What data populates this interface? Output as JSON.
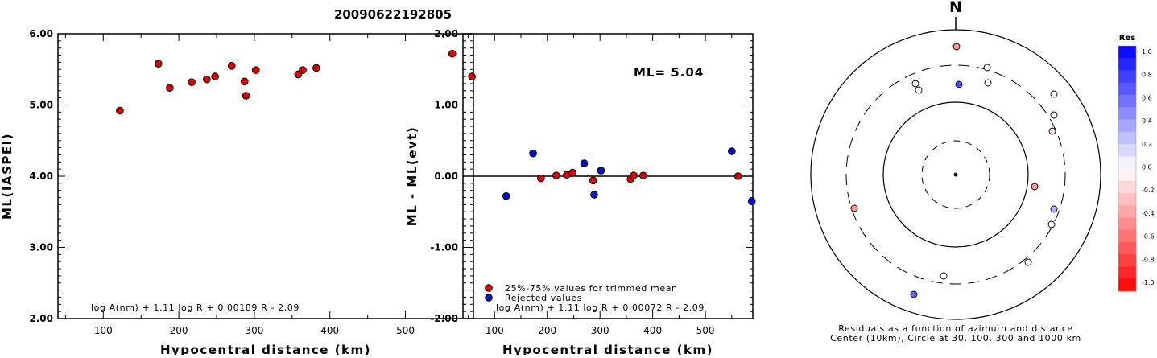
{
  "title": "20090622192805",
  "chart_data": [
    {
      "type": "scatter",
      "ylabel": "ML(IASPEI)",
      "xlabel": "Hypocentral distance (km)",
      "xlim": [
        40,
        590
      ],
      "ylim": [
        2.0,
        6.0
      ],
      "xticks": [
        100,
        200,
        300,
        400,
        500
      ],
      "yticks": [
        "2.00",
        "3.00",
        "4.00",
        "5.00",
        "6.00"
      ],
      "formula": "log A(nm) + 1.11 log R + 0.00189 R - 2.09",
      "points": [
        {
          "x": 122,
          "y": 4.92,
          "c": "red"
        },
        {
          "x": 173,
          "y": 5.58,
          "c": "red"
        },
        {
          "x": 188,
          "y": 5.24,
          "c": "red"
        },
        {
          "x": 217,
          "y": 5.32,
          "c": "red"
        },
        {
          "x": 237,
          "y": 5.36,
          "c": "red"
        },
        {
          "x": 248,
          "y": 5.4,
          "c": "red"
        },
        {
          "x": 270,
          "y": 5.55,
          "c": "red"
        },
        {
          "x": 287,
          "y": 5.33,
          "c": "red"
        },
        {
          "x": 289,
          "y": 5.13,
          "c": "red"
        },
        {
          "x": 302,
          "y": 5.49,
          "c": "red"
        },
        {
          "x": 358,
          "y": 5.43,
          "c": "red"
        },
        {
          "x": 364,
          "y": 5.49,
          "c": "red"
        },
        {
          "x": 382,
          "y": 5.52,
          "c": "red"
        },
        {
          "x": 562,
          "y": 5.72,
          "c": "red"
        },
        {
          "x": 588,
          "y": 5.4,
          "c": "red"
        }
      ]
    },
    {
      "type": "scatter",
      "ylabel": "ML - ML(evt)",
      "xlabel": "Hypocentral distance (km)",
      "xlim": [
        40,
        590
      ],
      "ylim": [
        -2.0,
        2.0
      ],
      "xticks": [
        100,
        200,
        300,
        400,
        500
      ],
      "yticks": [
        "-2.00",
        "-1.00",
        "0.00",
        "1.00",
        "2.00"
      ],
      "annotation": "ML=  5.04",
      "legend": [
        {
          "label": "25%-75% values for trimmed mean",
          "c": "red"
        },
        {
          "label": "Rejected values",
          "c": "blue"
        }
      ],
      "formula": "log A(nm) + 1.11 log R + 0.00072 R - 2.09",
      "points": [
        {
          "x": 122,
          "y": -0.28,
          "c": "blue"
        },
        {
          "x": 173,
          "y": 0.32,
          "c": "blue"
        },
        {
          "x": 188,
          "y": -0.03,
          "c": "red"
        },
        {
          "x": 217,
          "y": 0.01,
          "c": "red"
        },
        {
          "x": 237,
          "y": 0.02,
          "c": "red"
        },
        {
          "x": 248,
          "y": 0.05,
          "c": "red"
        },
        {
          "x": 270,
          "y": 0.18,
          "c": "blue"
        },
        {
          "x": 287,
          "y": -0.06,
          "c": "red"
        },
        {
          "x": 289,
          "y": -0.26,
          "c": "blue"
        },
        {
          "x": 302,
          "y": 0.08,
          "c": "blue"
        },
        {
          "x": 358,
          "y": -0.04,
          "c": "red"
        },
        {
          "x": 364,
          "y": 0.01,
          "c": "red"
        },
        {
          "x": 382,
          "y": 0.01,
          "c": "red"
        },
        {
          "x": 550,
          "y": 0.35,
          "c": "blue"
        },
        {
          "x": 562,
          "y": 0.0,
          "c": "red"
        },
        {
          "x": 588,
          "y": -0.35,
          "c": "blue"
        }
      ]
    },
    {
      "type": "scatter",
      "north_label": "N",
      "caption1": "Residuals as a function of azimuth and distance",
      "caption2": "Center (10km), Circle at 30, 100, 300 and 1000 km",
      "points": [
        {
          "dx": 1,
          "dy": -159,
          "res": -0.4
        },
        {
          "dx": 39,
          "dy": -133,
          "res": 0.0
        },
        {
          "dx": -50,
          "dy": -113,
          "res": 0.0
        },
        {
          "dx": -46,
          "dy": -105,
          "res": 0.0
        },
        {
          "dx": 4,
          "dy": -112,
          "res": 0.7
        },
        {
          "dx": 40,
          "dy": -114,
          "res": 0.0
        },
        {
          "dx": 122,
          "dy": -100,
          "res": 0.0
        },
        {
          "dx": 122,
          "dy": -74,
          "res": 0.0
        },
        {
          "dx": 120,
          "dy": -54,
          "res": -0.1
        },
        {
          "dx": 98,
          "dy": 15,
          "res": -0.4
        },
        {
          "dx": -126,
          "dy": 42,
          "res": -0.4
        },
        {
          "dx": 122,
          "dy": 43,
          "res": 0.3
        },
        {
          "dx": 119,
          "dy": 62,
          "res": 0.0
        },
        {
          "dx": 90,
          "dy": 109,
          "res": 0.0
        },
        {
          "dx": -15,
          "dy": 126,
          "res": 0.0
        },
        {
          "dx": -52,
          "dy": 149,
          "res": 0.6
        }
      ]
    }
  ],
  "colorbar": {
    "title": "Res",
    "labels": [
      "1.0",
      "0.8",
      "0.6",
      "0.4",
      "0.2",
      "0.0",
      "-0.2",
      "-0.4",
      "-0.6",
      "-0.8",
      "-1.0"
    ]
  }
}
